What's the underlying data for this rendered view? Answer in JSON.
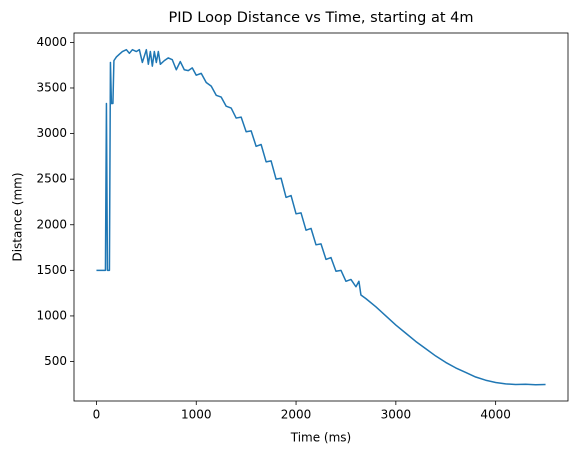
{
  "chart_data": {
    "type": "line",
    "title": "PID Loop Distance vs Time, starting at 4m",
    "x_label": "Time (ms)",
    "y_label": "Distance (mm)",
    "x": [
      0,
      90,
      100,
      110,
      130,
      140,
      150,
      165,
      175,
      200,
      230,
      260,
      300,
      330,
      360,
      400,
      430,
      460,
      500,
      520,
      540,
      560,
      580,
      600,
      620,
      640,
      680,
      720,
      760,
      800,
      840,
      880,
      920,
      960,
      1000,
      1050,
      1100,
      1150,
      1200,
      1250,
      1300,
      1350,
      1400,
      1450,
      1500,
      1550,
      1600,
      1650,
      1700,
      1750,
      1800,
      1850,
      1900,
      1950,
      2000,
      2050,
      2100,
      2150,
      2200,
      2250,
      2300,
      2350,
      2400,
      2450,
      2500,
      2550,
      2600,
      2630,
      2650,
      2700,
      2800,
      2900,
      3000,
      3100,
      3200,
      3300,
      3400,
      3500,
      3600,
      3700,
      3800,
      3900,
      4000,
      4100,
      4200,
      4300,
      4400,
      4500
    ],
    "series": [
      {
        "color": "#1f77b4",
        "values": [
          1500,
          1500,
          3330,
          1500,
          1500,
          3780,
          3330,
          3330,
          3800,
          3840,
          3870,
          3900,
          3920,
          3880,
          3920,
          3900,
          3920,
          3780,
          3920,
          3760,
          3900,
          3740,
          3900,
          3780,
          3900,
          3760,
          3800,
          3830,
          3810,
          3700,
          3790,
          3700,
          3690,
          3720,
          3640,
          3660,
          3560,
          3520,
          3420,
          3400,
          3300,
          3280,
          3170,
          3180,
          3020,
          3030,
          2860,
          2880,
          2690,
          2700,
          2500,
          2510,
          2300,
          2320,
          2120,
          2130,
          1940,
          1960,
          1780,
          1790,
          1620,
          1640,
          1490,
          1500,
          1380,
          1400,
          1320,
          1380,
          1230,
          1190,
          1100,
          1000,
          900,
          810,
          720,
          640,
          560,
          490,
          430,
          380,
          330,
          295,
          270,
          255,
          248,
          250,
          245,
          248
        ]
      }
    ],
    "xlim": [
      -225,
      4725
    ],
    "ylim": [
      67,
      4103
    ],
    "xticks": [
      0,
      1000,
      2000,
      3000,
      4000
    ],
    "yticks": [
      500,
      1000,
      1500,
      2000,
      2500,
      3000,
      3500,
      4000
    ]
  }
}
